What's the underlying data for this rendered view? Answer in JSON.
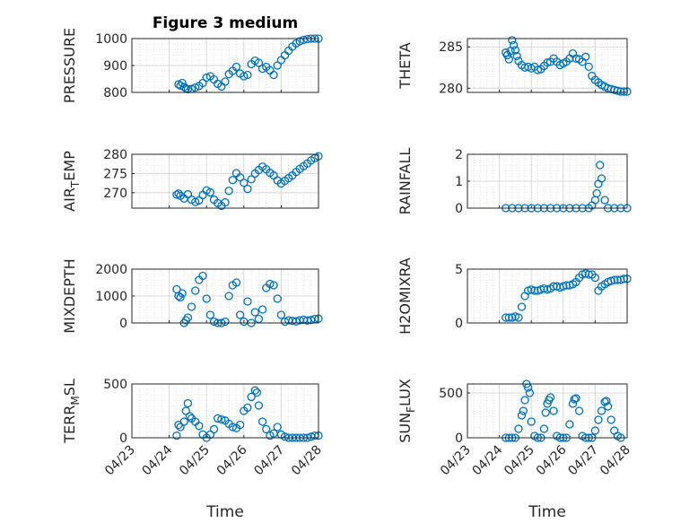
{
  "marker_color": "#0072BD",
  "chart_data": [
    {
      "type": "scatter",
      "title": "Figure 3 medium",
      "ylabel": "PRESSURE",
      "xlabel": "",
      "xlim": [
        "04/23",
        "04/28"
      ],
      "ylim": [
        800,
        1000
      ],
      "yticks": [
        "800",
        "900",
        "1000"
      ],
      "xticks": [],
      "grid": true,
      "series": [
        {
          "x": [
            1.25,
            1.3,
            1.35,
            1.4,
            1.45,
            1.5,
            1.6,
            1.7,
            1.8,
            1.9,
            2.0,
            2.1,
            2.2,
            2.3,
            2.4,
            2.5,
            2.6,
            2.7,
            2.8,
            2.9,
            3.0,
            3.1,
            3.2,
            3.3,
            3.4,
            3.5,
            3.6,
            3.7,
            3.8,
            3.9,
            4.0,
            4.1,
            4.2,
            4.3,
            4.4,
            4.5,
            4.6,
            4.7,
            4.8,
            4.9,
            5.0
          ],
          "y": [
            830,
            825,
            835,
            820,
            815,
            812,
            813,
            818,
            824,
            835,
            855,
            860,
            848,
            832,
            822,
            840,
            868,
            880,
            895,
            870,
            860,
            865,
            905,
            918,
            910,
            888,
            895,
            882,
            865,
            900,
            920,
            938,
            955,
            970,
            982,
            990,
            995,
            998,
            1000,
            1000,
            1000
          ]
        }
      ]
    },
    {
      "type": "scatter",
      "title": "",
      "ylabel": "THETA",
      "xlabel": "",
      "xlim": [
        "04/23",
        "04/28"
      ],
      "ylim": [
        279.5,
        286
      ],
      "yticks": [
        "280",
        "285"
      ],
      "xticks": [],
      "grid": true,
      "series": [
        {
          "x": [
            1.2,
            1.25,
            1.3,
            1.35,
            1.4,
            1.45,
            1.5,
            1.55,
            1.6,
            1.7,
            1.8,
            1.9,
            2.0,
            2.1,
            2.2,
            2.3,
            2.4,
            2.5,
            2.6,
            2.7,
            2.8,
            2.9,
            3.0,
            3.1,
            3.2,
            3.3,
            3.4,
            3.5,
            3.6,
            3.7,
            3.8,
            3.9,
            4.0,
            4.1,
            4.2,
            4.3,
            4.4,
            4.5,
            4.6,
            4.7,
            4.8,
            4.9,
            5.0
          ],
          "y": [
            284.3,
            284.0,
            283.5,
            284.5,
            285.8,
            285.2,
            284.6,
            283.9,
            283.3,
            282.8,
            282.5,
            282.6,
            282.4,
            282.6,
            282.2,
            282.3,
            282.7,
            283.1,
            283.2,
            283.6,
            283.2,
            282.8,
            283.0,
            283.2,
            283.6,
            284.2,
            283.6,
            283.5,
            283.2,
            283.8,
            282.6,
            281.5,
            281.0,
            280.7,
            280.4,
            280.2,
            280.0,
            279.9,
            279.8,
            279.7,
            279.6,
            279.6,
            279.6
          ]
        }
      ]
    },
    {
      "type": "scatter",
      "title": "",
      "ylabel": "AIR_TEMP",
      "xlabel": "",
      "xlim": [
        "04/23",
        "04/28"
      ],
      "ylim": [
        266,
        280
      ],
      "yticks": [
        "270",
        "275",
        "280"
      ],
      "xticks": [],
      "grid": true,
      "series": [
        {
          "x": [
            1.2,
            1.25,
            1.3,
            1.4,
            1.5,
            1.6,
            1.7,
            1.8,
            1.9,
            2.0,
            2.1,
            2.2,
            2.3,
            2.4,
            2.5,
            2.6,
            2.7,
            2.8,
            2.9,
            3.0,
            3.1,
            3.2,
            3.3,
            3.4,
            3.5,
            3.6,
            3.7,
            3.8,
            3.9,
            4.0,
            4.1,
            4.2,
            4.3,
            4.4,
            4.5,
            4.6,
            4.7,
            4.8,
            4.9,
            5.0
          ],
          "y": [
            269.5,
            269.8,
            269.2,
            268.5,
            269.6,
            268.2,
            267.6,
            268.0,
            269.4,
            270.6,
            270.1,
            268.2,
            267.3,
            266.6,
            267.5,
            270.5,
            273.3,
            275.1,
            274.0,
            272.6,
            271.0,
            273.5,
            275.0,
            275.9,
            276.8,
            276.1,
            275.2,
            274.5,
            273.2,
            272.4,
            273.1,
            273.8,
            274.5,
            275.4,
            276.2,
            276.9,
            277.6,
            278.4,
            279.0,
            279.5
          ]
        }
      ]
    },
    {
      "type": "scatter",
      "title": "",
      "ylabel": "RAINFALL",
      "xlabel": "",
      "xlim": [
        "04/23",
        "04/28"
      ],
      "ylim": [
        0,
        2
      ],
      "yticks": [
        "0",
        "1",
        "2"
      ],
      "xticks": [],
      "grid": true,
      "series": [
        {
          "x": [
            1.2,
            1.4,
            1.6,
            1.8,
            2.0,
            2.2,
            2.4,
            2.6,
            2.8,
            3.0,
            3.2,
            3.4,
            3.6,
            3.8,
            3.9,
            4.0,
            4.05,
            4.1,
            4.15,
            4.2,
            4.3,
            4.4,
            4.6,
            4.8,
            5.0
          ],
          "y": [
            0,
            0,
            0,
            0,
            0,
            0,
            0,
            0,
            0,
            0,
            0,
            0,
            0,
            0,
            0.1,
            0.3,
            0.55,
            0.9,
            1.6,
            1.1,
            0.3,
            0,
            0,
            0,
            0
          ]
        }
      ]
    },
    {
      "type": "scatter",
      "title": "",
      "ylabel": "MIXDEPTH",
      "xlabel": "",
      "xlim": [
        "04/23",
        "04/28"
      ],
      "ylim": [
        0,
        2000
      ],
      "yticks": [
        "0",
        "1000",
        "2000"
      ],
      "xticks": [],
      "grid": true,
      "series": [
        {
          "x": [
            1.2,
            1.25,
            1.3,
            1.35,
            1.4,
            1.45,
            1.5,
            1.6,
            1.7,
            1.8,
            1.9,
            2.0,
            2.1,
            2.2,
            2.3,
            2.4,
            2.5,
            2.6,
            2.7,
            2.8,
            2.9,
            3.0,
            3.1,
            3.2,
            3.3,
            3.4,
            3.5,
            3.6,
            3.7,
            3.8,
            3.9,
            4.0,
            4.1,
            4.2,
            4.3,
            4.4,
            4.5,
            4.6,
            4.7,
            4.8,
            4.9,
            5.0
          ],
          "y": [
            1250,
            1000,
            950,
            1100,
            0,
            100,
            200,
            600,
            1200,
            1600,
            1750,
            900,
            300,
            50,
            0,
            0,
            50,
            1000,
            1400,
            1500,
            300,
            50,
            800,
            0,
            400,
            150,
            500,
            1300,
            1450,
            1400,
            900,
            300,
            50,
            100,
            80,
            60,
            100,
            120,
            90,
            110,
            150,
            160
          ]
        }
      ]
    },
    {
      "type": "scatter",
      "title": "",
      "ylabel": "H2OMIXRA",
      "xlabel": "",
      "xlim": [
        "04/23",
        "04/28"
      ],
      "ylim": [
        0,
        5
      ],
      "yticks": [
        "0",
        "5"
      ],
      "xticks": [],
      "grid": true,
      "series": [
        {
          "x": [
            1.2,
            1.3,
            1.4,
            1.5,
            1.6,
            1.7,
            1.8,
            1.9,
            2.0,
            2.1,
            2.2,
            2.3,
            2.4,
            2.5,
            2.6,
            2.7,
            2.8,
            2.9,
            3.0,
            3.1,
            3.2,
            3.3,
            3.4,
            3.5,
            3.6,
            3.7,
            3.8,
            3.9,
            4.0,
            4.1,
            4.2,
            4.3,
            4.4,
            4.5,
            4.6,
            4.7,
            4.8,
            4.9,
            5.0
          ],
          "y": [
            0.5,
            0.5,
            0.5,
            0.6,
            0.5,
            1.5,
            2.5,
            3.0,
            3.1,
            3.0,
            3.0,
            3.1,
            3.2,
            3.1,
            3.2,
            3.4,
            3.4,
            3.3,
            3.4,
            3.5,
            3.5,
            3.6,
            3.8,
            4.2,
            4.5,
            4.6,
            4.5,
            4.5,
            4.2,
            3.0,
            3.4,
            3.6,
            3.8,
            3.9,
            4.0,
            4.0,
            4.0,
            4.1,
            4.1
          ]
        }
      ]
    },
    {
      "type": "scatter",
      "title": "",
      "ylabel": "TERR_MSL",
      "xlabel": "Time",
      "xlim": [
        "04/23",
        "04/28"
      ],
      "ylim": [
        0,
        500
      ],
      "yticks": [
        "0",
        "500"
      ],
      "xticks": [
        "04/23",
        "04/24",
        "04/25",
        "04/26",
        "04/27",
        "04/28"
      ],
      "grid": true,
      "series": [
        {
          "x": [
            1.2,
            1.25,
            1.3,
            1.4,
            1.45,
            1.5,
            1.55,
            1.6,
            1.7,
            1.8,
            1.9,
            2.0,
            2.1,
            2.2,
            2.3,
            2.4,
            2.5,
            2.6,
            2.7,
            2.8,
            2.9,
            3.0,
            3.1,
            3.2,
            3.3,
            3.35,
            3.4,
            3.5,
            3.6,
            3.7,
            3.8,
            3.9,
            4.0,
            4.1,
            4.2,
            4.3,
            4.4,
            4.5,
            4.6,
            4.7,
            4.8,
            4.9,
            5.0
          ],
          "y": [
            20,
            120,
            100,
            150,
            250,
            320,
            200,
            180,
            150,
            110,
            30,
            0,
            30,
            80,
            180,
            170,
            160,
            130,
            100,
            90,
            120,
            250,
            280,
            380,
            440,
            420,
            300,
            150,
            80,
            20,
            40,
            100,
            30,
            10,
            0,
            0,
            0,
            0,
            0,
            0,
            10,
            20,
            20
          ]
        }
      ]
    },
    {
      "type": "scatter",
      "title": "",
      "ylabel": "SUN_FLUX",
      "xlabel": "Time",
      "xlim": [
        "04/23",
        "04/28"
      ],
      "ylim": [
        0,
        600
      ],
      "yticks": [
        "0",
        "500"
      ],
      "xticks": [
        "04/23",
        "04/24",
        "04/25",
        "04/26",
        "04/27",
        "04/28"
      ],
      "grid": true,
      "series": [
        {
          "x": [
            1.2,
            1.3,
            1.4,
            1.5,
            1.6,
            1.7,
            1.75,
            1.8,
            1.85,
            1.9,
            1.95,
            2.0,
            2.1,
            2.2,
            2.3,
            2.4,
            2.45,
            2.5,
            2.55,
            2.6,
            2.7,
            2.8,
            2.9,
            3.0,
            3.1,
            3.2,
            3.3,
            3.35,
            3.4,
            3.5,
            3.6,
            3.7,
            3.8,
            3.9,
            4.0,
            4.1,
            4.2,
            4.3,
            4.35,
            4.4,
            4.5,
            4.6,
            4.7,
            4.8
          ],
          "y": [
            0,
            0,
            0,
            0,
            100,
            250,
            300,
            420,
            600,
            560,
            500,
            180,
            20,
            0,
            0,
            100,
            280,
            380,
            420,
            450,
            300,
            20,
            0,
            0,
            0,
            150,
            380,
            430,
            440,
            300,
            20,
            0,
            0,
            0,
            80,
            200,
            300,
            400,
            410,
            350,
            200,
            80,
            20,
            0
          ]
        }
      ]
    }
  ]
}
